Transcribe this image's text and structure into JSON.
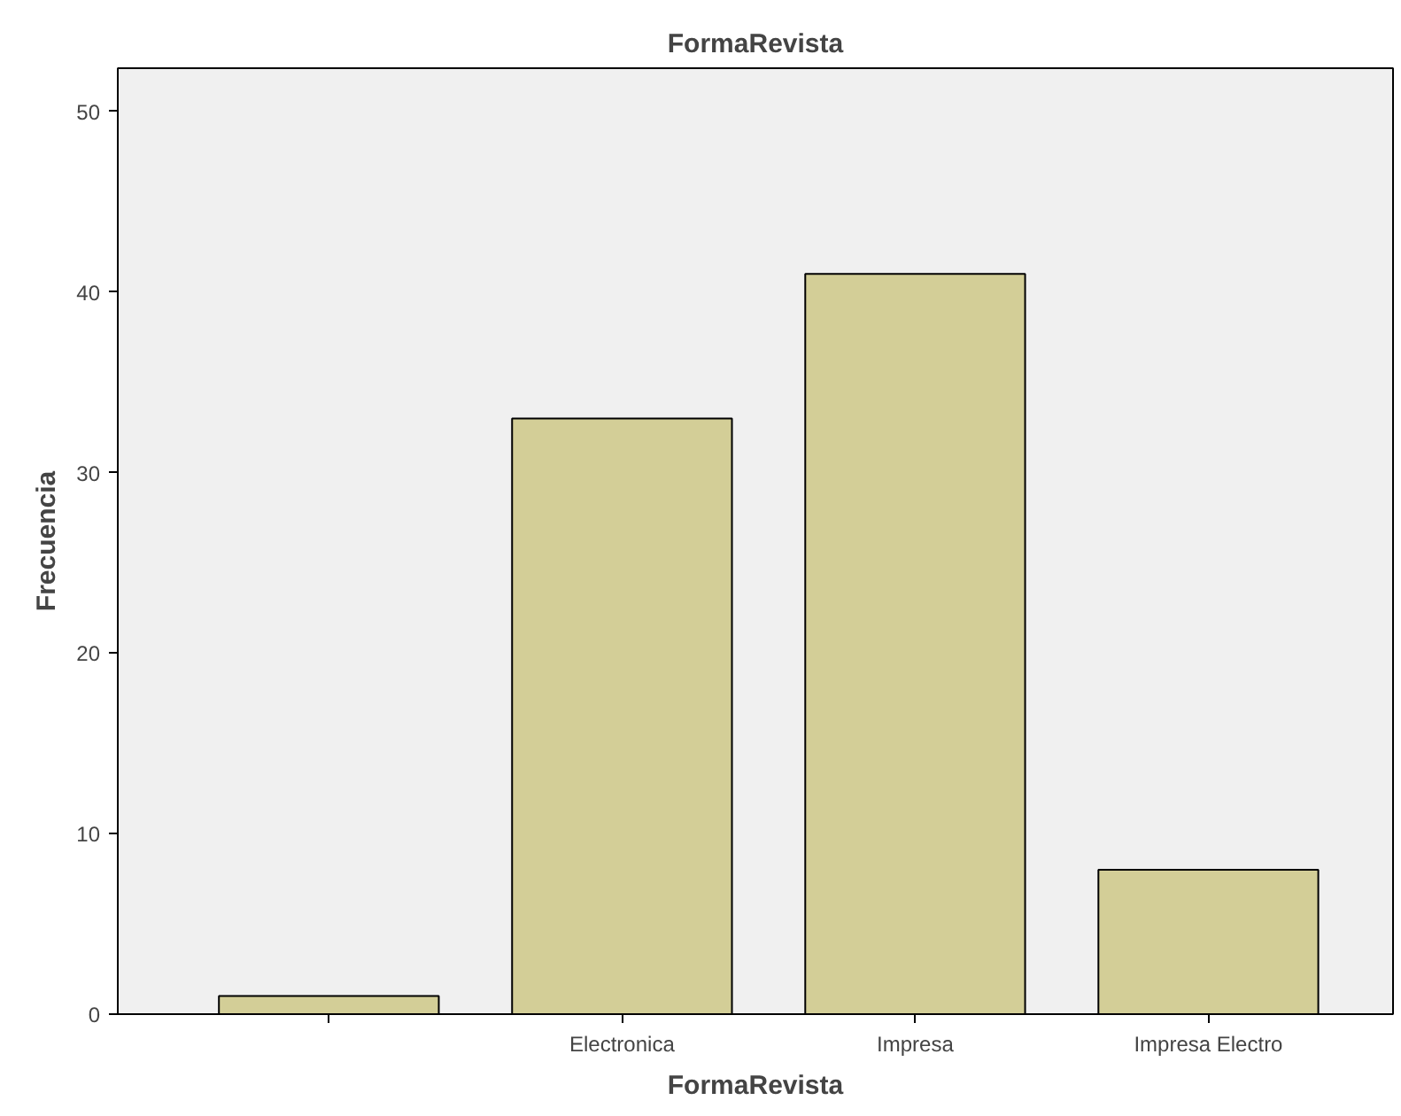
{
  "chart_data": {
    "type": "bar",
    "title": "FormaRevista",
    "xlabel": "FormaRevista",
    "ylabel": "Frecuencia",
    "categories": [
      null,
      "Electronica",
      "Impresa",
      "Impresa Electro"
    ],
    "values": [
      1,
      33,
      41,
      8
    ],
    "color": "#d3ce97",
    "ylim": [
      0,
      52.4
    ],
    "yticks": [
      0,
      10,
      20,
      30,
      40,
      50
    ],
    "grid": false
  }
}
